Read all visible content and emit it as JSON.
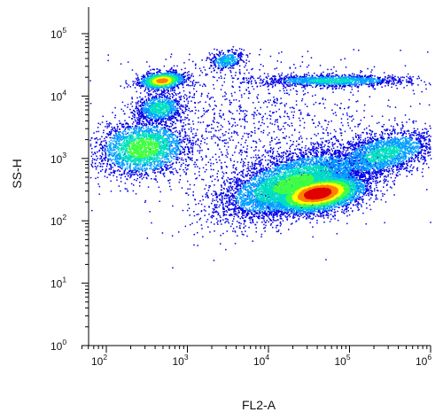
{
  "chart_data": {
    "type": "scatter",
    "subtype": "flow-cytometry-density-dot-plot",
    "title": "",
    "xlabel": "FL2-A",
    "ylabel": "SS-H",
    "x_scale": "log",
    "y_scale": "log",
    "xlim": [
      50,
      1000000
    ],
    "ylim": [
      1,
      100000
    ],
    "x_ticks": [
      {
        "base": "10",
        "exp": "2",
        "value": 100
      },
      {
        "base": "10",
        "exp": "3",
        "value": 1000
      },
      {
        "base": "10",
        "exp": "4",
        "value": 10000
      },
      {
        "base": "10",
        "exp": "5",
        "value": 100000
      },
      {
        "base": "10",
        "exp": "6",
        "value": 1000000
      }
    ],
    "y_ticks": [
      {
        "base": "10",
        "exp": "0",
        "value": 1
      },
      {
        "base": "10",
        "exp": "1",
        "value": 10
      },
      {
        "base": "10",
        "exp": "2",
        "value": 100
      },
      {
        "base": "10",
        "exp": "3",
        "value": 1000
      },
      {
        "base": "10",
        "exp": "4",
        "value": 10000
      },
      {
        "base": "10",
        "exp": "5",
        "value": 100000
      }
    ],
    "grid": false,
    "legend": "none",
    "colormap": [
      "#0000e6",
      "#00a0ff",
      "#00e0c0",
      "#40ff40",
      "#ffff00",
      "#ff8000",
      "#e00000"
    ],
    "populations": [
      {
        "center": [
          40000,
          280
        ],
        "spread": [
          0.3,
          0.16
        ],
        "corr": 0.35,
        "peak_density": 1.0,
        "count": 5200
      },
      {
        "center": [
          20000,
          400
        ],
        "spread": [
          0.45,
          0.28
        ],
        "corr": 0.55,
        "peak_density": 0.5,
        "count": 5500
      },
      {
        "center": [
          250000,
          1200
        ],
        "spread": [
          0.35,
          0.2
        ],
        "corr": 0.5,
        "peak_density": 0.35,
        "count": 2200
      },
      {
        "center": [
          280,
          1500
        ],
        "spread": [
          0.28,
          0.22
        ],
        "corr": 0.1,
        "peak_density": 0.55,
        "count": 2600
      },
      {
        "center": [
          480,
          18000
        ],
        "spread": [
          0.14,
          0.07
        ],
        "corr": 0.2,
        "peak_density": 0.8,
        "count": 1300
      },
      {
        "center": [
          450,
          6500
        ],
        "spread": [
          0.15,
          0.12
        ],
        "corr": 0.1,
        "peak_density": 0.4,
        "count": 900
      },
      {
        "center": [
          3000,
          38000
        ],
        "spread": [
          0.12,
          0.08
        ],
        "corr": 0.3,
        "peak_density": 0.3,
        "count": 350
      },
      {
        "center": [
          60000,
          18000
        ],
        "spread": [
          0.45,
          0.05
        ],
        "corr": 0.0,
        "peak_density": 0.35,
        "count": 1400
      },
      {
        "center": [
          6000,
          3000
        ],
        "spread": [
          0.9,
          0.65
        ],
        "corr": 0.0,
        "peak_density": 0.05,
        "count": 1400
      }
    ]
  }
}
